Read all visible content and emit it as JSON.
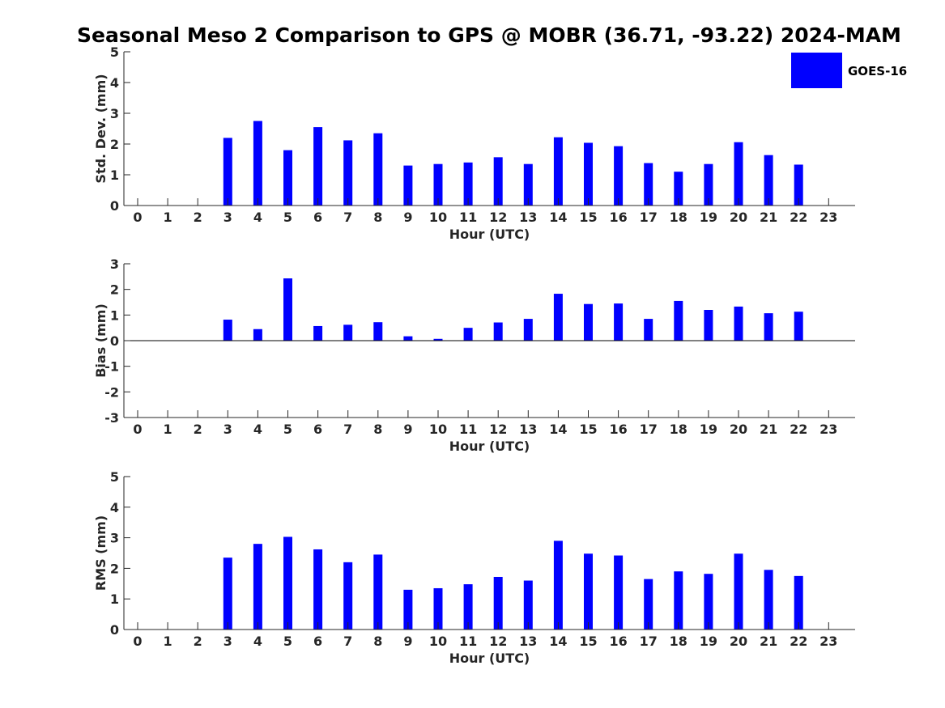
{
  "figure": {
    "title": "Seasonal Meso 2 Comparison to GPS @ MOBR (36.71, -93.22) 2024-MAM"
  },
  "legend": {
    "label": "GOES-16",
    "color": "#0000ff",
    "placement": "top-right"
  },
  "chart_data": [
    {
      "type": "bar",
      "ylabel": "Std. Dev. (mm)",
      "xlabel": "Hour (UTC)",
      "x": [
        0,
        1,
        2,
        3,
        4,
        5,
        6,
        7,
        8,
        9,
        10,
        11,
        12,
        13,
        14,
        15,
        16,
        17,
        18,
        19,
        20,
        21,
        22,
        23
      ],
      "ylim": [
        0,
        5
      ],
      "yticks": [
        0,
        1,
        2,
        3,
        4,
        5
      ],
      "series": [
        {
          "name": "GOES-16",
          "color": "#0000ff",
          "values": [
            null,
            null,
            null,
            2.2,
            2.75,
            1.8,
            2.55,
            2.12,
            2.35,
            1.3,
            1.35,
            1.4,
            1.57,
            1.35,
            2.22,
            2.04,
            1.93,
            1.38,
            1.1,
            1.35,
            2.06,
            1.64,
            1.33,
            null
          ]
        }
      ]
    },
    {
      "type": "bar",
      "ylabel": "Bias (mm)",
      "xlabel": "Hour (UTC)",
      "x": [
        0,
        1,
        2,
        3,
        4,
        5,
        6,
        7,
        8,
        9,
        10,
        11,
        12,
        13,
        14,
        15,
        16,
        17,
        18,
        19,
        20,
        21,
        22,
        23
      ],
      "ylim": [
        -3,
        3
      ],
      "yticks": [
        -3,
        -2,
        -1,
        0,
        1,
        2,
        3
      ],
      "series": [
        {
          "name": "GOES-16",
          "color": "#0000ff",
          "values": [
            null,
            null,
            null,
            0.82,
            0.45,
            2.43,
            0.57,
            0.62,
            0.72,
            0.17,
            0.07,
            0.5,
            0.71,
            0.85,
            1.83,
            1.43,
            1.45,
            0.85,
            1.55,
            1.2,
            1.33,
            1.07,
            1.13,
            null
          ]
        }
      ]
    },
    {
      "type": "bar",
      "ylabel": "RMS (mm)",
      "xlabel": "Hour (UTC)",
      "x": [
        0,
        1,
        2,
        3,
        4,
        5,
        6,
        7,
        8,
        9,
        10,
        11,
        12,
        13,
        14,
        15,
        16,
        17,
        18,
        19,
        20,
        21,
        22,
        23
      ],
      "ylim": [
        0,
        5
      ],
      "yticks": [
        0,
        1,
        2,
        3,
        4,
        5
      ],
      "series": [
        {
          "name": "GOES-16",
          "color": "#0000ff",
          "values": [
            null,
            null,
            null,
            2.35,
            2.8,
            3.03,
            2.62,
            2.2,
            2.45,
            1.3,
            1.35,
            1.48,
            1.72,
            1.6,
            2.9,
            2.48,
            2.42,
            1.65,
            1.9,
            1.82,
            2.48,
            1.95,
            1.75,
            null
          ]
        }
      ]
    }
  ]
}
